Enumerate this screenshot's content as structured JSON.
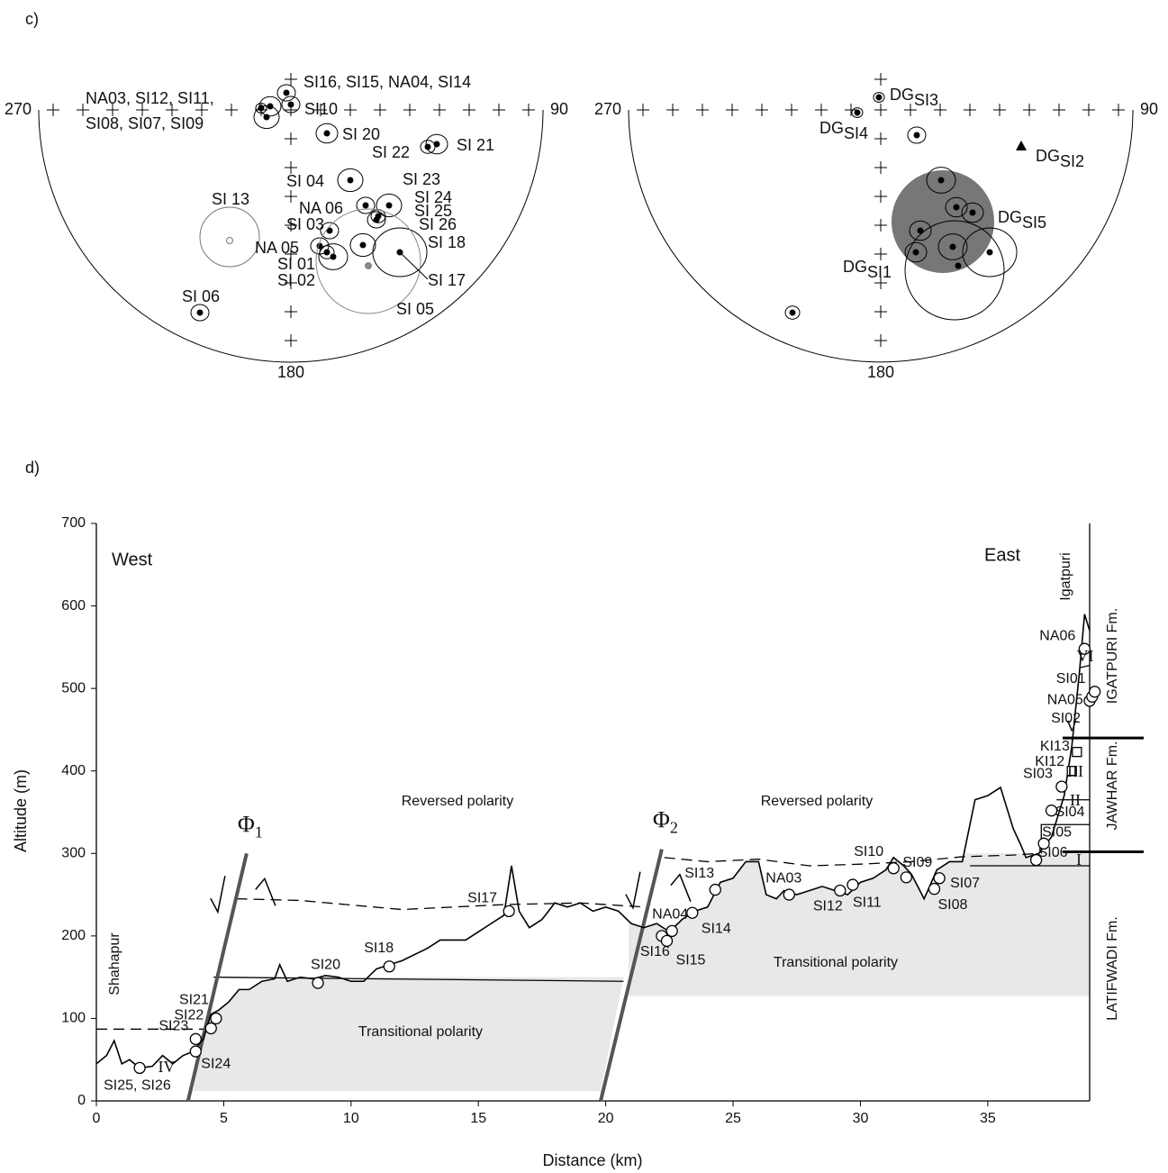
{
  "panel_c": {
    "label": "c)",
    "nets": [
      {
        "directions": [
          "270",
          "90",
          "180"
        ],
        "labels": [
          "NA03, SI12,    SI11,",
          "SI08, SI07, SI09",
          "SI16, SI15, NA04, SI14",
          "SI10",
          "SI 20",
          "SI 22",
          "SI 21",
          "SI 04",
          "SI 23",
          "SI 24",
          "NA 06",
          "SI 25",
          "SI 13",
          "SI 03",
          "SI 26",
          "NA 05",
          "SI 18",
          "SI 01",
          "SI 02",
          "SI 17",
          "SI 06",
          "SI 05"
        ]
      },
      {
        "directions": [
          "270",
          "90",
          "180"
        ],
        "labels": [
          {
            "main": "DG",
            "sub": "SI3"
          },
          {
            "main": "DG",
            "sub": "SI4"
          },
          {
            "main": "DG",
            "sub": "SI2"
          },
          {
            "main": "DG",
            "sub": "SI5"
          },
          {
            "main": "DG",
            "sub": "SI1"
          }
        ]
      }
    ]
  },
  "panel_d": {
    "label": "d)"
  },
  "chart_data": {
    "type": "line",
    "x_label": "Distance (km)",
    "y_label": "Altitude (m)",
    "xlim": [
      0,
      39
    ],
    "ylim": [
      0,
      700
    ],
    "xticks": [
      0,
      5,
      10,
      15,
      20,
      25,
      30,
      35
    ],
    "yticks": [
      0,
      100,
      200,
      300,
      400,
      500,
      600,
      700
    ],
    "color": "#000000",
    "x": [
      0,
      0.4,
      0.7,
      1.0,
      1.3,
      1.7,
      2.2,
      2.6,
      3.0,
      3.4,
      3.8,
      4.2,
      4.5,
      4.8,
      5.2,
      5.6,
      6.0,
      6.5,
      7.0,
      7.2,
      7.5,
      8.0,
      8.5,
      9.0,
      9.5,
      10.0,
      10.5,
      11.0,
      11.5,
      12.0,
      13.0,
      13.5,
      14.5,
      15.0,
      15.5,
      16.0,
      16.3,
      16.6,
      17.0,
      17.5,
      18.0,
      18.5,
      19.0,
      19.5,
      20.0,
      20.5,
      21.0,
      21.5,
      22.0,
      22.5,
      23.0,
      23.5,
      24.0,
      24.5,
      25.0,
      25.5,
      26.0,
      26.3,
      26.7,
      27.0,
      27.5,
      28.0,
      28.5,
      29.0,
      29.5,
      30.0,
      30.5,
      31.0,
      31.3,
      31.7,
      32.0,
      32.5,
      33.0,
      33.5,
      34.0,
      34.5,
      35.0,
      35.5,
      36.0,
      36.3,
      36.5,
      37.0,
      37.5,
      38.0,
      38.3,
      38.6,
      38.8,
      39.0
    ],
    "values": [
      45,
      55,
      73,
      45,
      50,
      40,
      42,
      55,
      45,
      55,
      60,
      75,
      105,
      110,
      120,
      135,
      135,
      145,
      148,
      165,
      145,
      150,
      148,
      152,
      150,
      145,
      145,
      160,
      165,
      170,
      185,
      195,
      195,
      205,
      215,
      225,
      285,
      230,
      210,
      220,
      240,
      235,
      240,
      230,
      235,
      230,
      215,
      210,
      215,
      205,
      220,
      230,
      235,
      265,
      270,
      290,
      290,
      250,
      245,
      255,
      250,
      255,
      260,
      255,
      250,
      265,
      270,
      280,
      295,
      285,
      275,
      245,
      280,
      290,
      290,
      365,
      370,
      380,
      330,
      310,
      295,
      300,
      320,
      370,
      430,
      520,
      590,
      570
    ],
    "points": [
      {
        "label": "SI25, SI26",
        "x": 1.7,
        "y": 40,
        "marker": "circle"
      },
      {
        "label": "SI24",
        "x": 3.9,
        "y": 60,
        "marker": "circle"
      },
      {
        "label": "SI23",
        "x": 3.9,
        "y": 75,
        "marker": "circle"
      },
      {
        "label": "SI22",
        "x": 4.5,
        "y": 88,
        "marker": "circle"
      },
      {
        "label": "SI21",
        "x": 4.7,
        "y": 100,
        "marker": "circle"
      },
      {
        "label": "SI20",
        "x": 8.7,
        "y": 143,
        "marker": "circle"
      },
      {
        "label": "SI18",
        "x": 11.5,
        "y": 163,
        "marker": "circle"
      },
      {
        "label": "SI17",
        "x": 16.2,
        "y": 230,
        "marker": "circle"
      },
      {
        "label": "NA04",
        "x": 22.6,
        "y": 206,
        "marker": "circle"
      },
      {
        "label": "SI16",
        "x": 22.2,
        "y": 200,
        "marker": "circle"
      },
      {
        "label": "SI15",
        "x": 22.4,
        "y": 194,
        "marker": "circle"
      },
      {
        "label": "SI14",
        "x": 23.4,
        "y": 228,
        "marker": "circle"
      },
      {
        "label": "SI13",
        "x": 24.3,
        "y": 256,
        "marker": "circle"
      },
      {
        "label": "NA03",
        "x": 27.2,
        "y": 250,
        "marker": "circle"
      },
      {
        "label": "SI12",
        "x": 29.2,
        "y": 255,
        "marker": "circle"
      },
      {
        "label": "SI11",
        "x": 29.7,
        "y": 262,
        "marker": "circle"
      },
      {
        "label": "SI10",
        "x": 31.3,
        "y": 282,
        "marker": "circle"
      },
      {
        "label": "SI09",
        "x": 31.8,
        "y": 271,
        "marker": "circle"
      },
      {
        "label": "SI08",
        "x": 32.9,
        "y": 257,
        "marker": "circle"
      },
      {
        "label": "SI07",
        "x": 33.1,
        "y": 270,
        "marker": "circle"
      },
      {
        "label": "SI06",
        "x": 36.9,
        "y": 292,
        "marker": "circle"
      },
      {
        "label": "SI05",
        "x": 37.2,
        "y": 312,
        "marker": "circle"
      },
      {
        "label": "SI04",
        "x": 37.5,
        "y": 352,
        "marker": "circle"
      },
      {
        "label": "SI03",
        "x": 37.9,
        "y": 381,
        "marker": "circle"
      },
      {
        "label": "KI12",
        "x": 38.3,
        "y": 400,
        "marker": "square"
      },
      {
        "label": "KI13",
        "x": 38.5,
        "y": 423,
        "marker": "square"
      },
      {
        "label": "SI02",
        "x": 39.0,
        "y": 485,
        "marker": "circle"
      },
      {
        "label": "NA05",
        "x": 39.1,
        "y": 490,
        "marker": "circle"
      },
      {
        "label": "SI01",
        "x": 39.2,
        "y": 496,
        "marker": "circle"
      },
      {
        "label": "NA06",
        "x": 38.8,
        "y": 548,
        "marker": "circle"
      }
    ],
    "dashed_lines": [
      {
        "x": [
          0,
          4.2
        ],
        "y": [
          87,
          87
        ]
      },
      {
        "x": [
          5.5,
          8,
          12,
          16,
          19,
          21.5
        ],
        "y": [
          245,
          243,
          232,
          238,
          240,
          235
        ]
      },
      {
        "x": [
          22.3,
          24,
          26,
          28,
          30,
          32,
          34,
          36,
          37
        ],
        "y": [
          295,
          290,
          293,
          285,
          287,
          290,
          296,
          298,
          300
        ]
      }
    ],
    "transitional_zones": [
      {
        "x": [
          4.6,
          20.7,
          19.8,
          3.8
        ],
        "y": [
          150,
          150,
          12,
          12
        ]
      },
      {
        "x": [
          20.9,
          39,
          39,
          20.9
        ],
        "y": [
          300,
          300,
          127,
          127
        ]
      }
    ],
    "solid_boundaries": [
      {
        "x": [
          4.6,
          20.7
        ],
        "y": [
          150,
          145
        ]
      },
      {
        "x": [
          34.3,
          39
        ],
        "y": [
          285,
          285
        ]
      }
    ],
    "faults": [
      {
        "symbol": "Φ",
        "sub": "1",
        "x": [
          3.6,
          5.9
        ],
        "y": [
          0,
          300
        ]
      },
      {
        "symbol": "Φ",
        "sub": "2",
        "x": [
          19.8,
          22.2
        ],
        "y": [
          0,
          305
        ]
      }
    ],
    "formation_boundaries": [
      440,
      302
    ],
    "annotations": [
      "West",
      "East",
      "Reversed polarity",
      "Reversed polarity",
      "Transitional polarity",
      "Transitional polarity",
      "Shahapur",
      "Igatpuri",
      "IGATPURI Fm.",
      "JAWHAR Fm.",
      "LATIFWADI Fm."
    ],
    "units": [
      "IV",
      "I",
      "II",
      "III",
      "V",
      "VI"
    ]
  }
}
